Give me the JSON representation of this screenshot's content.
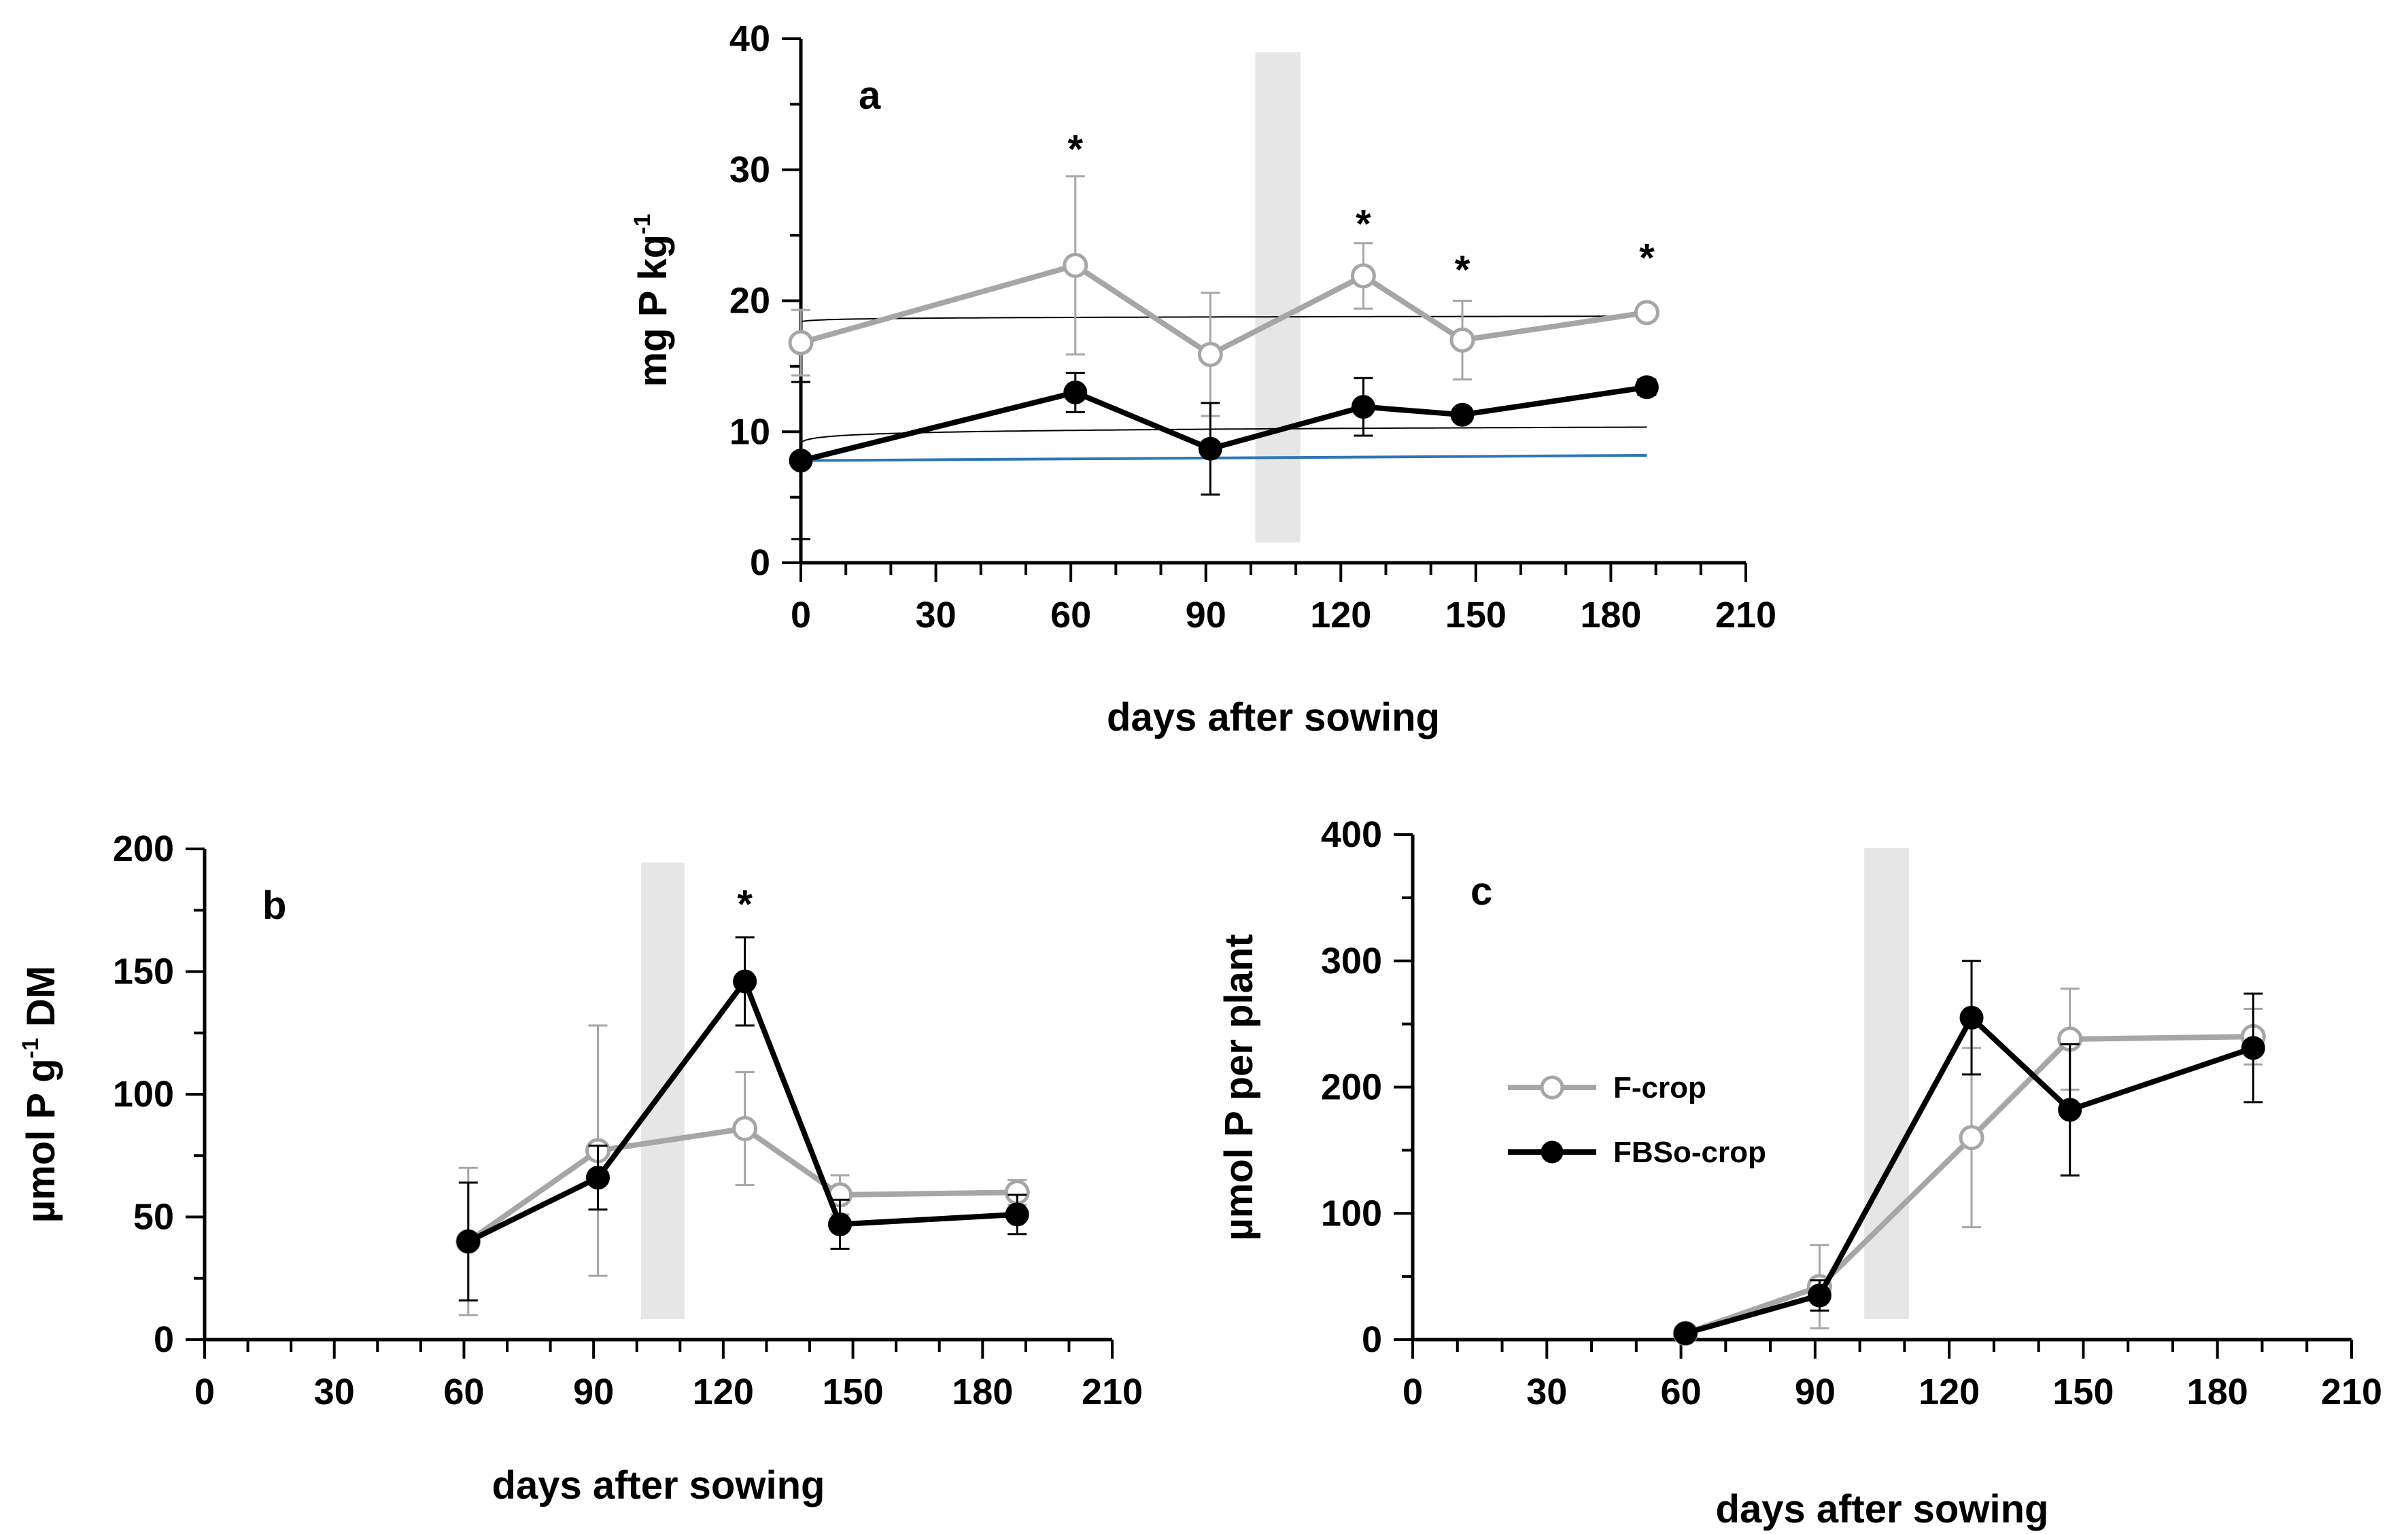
{
  "colors": {
    "f_crop": "#a6a6a6",
    "fbso_crop": "#000000",
    "band": "#e6e6e6",
    "reference_line": "#2e75b6",
    "trend": "#000000"
  },
  "legend": {
    "f_crop": "F-crop",
    "fbso_crop": "FBSo-crop"
  },
  "chart_data": [
    {
      "id": "a",
      "type": "line",
      "panel_label": "a",
      "xlabel": "days after sowing",
      "ylabel_main": "mg P  kg",
      "ylabel_sup": "-1",
      "ylabel_suffix": "",
      "xlim": [
        0,
        210
      ],
      "ylim": [
        0,
        40
      ],
      "xticks": [
        0,
        30,
        60,
        90,
        120,
        150,
        180,
        210
      ],
      "yticks": [
        0,
        10,
        20,
        30,
        40
      ],
      "xtick_labels": [
        "0",
        "30",
        "60",
        "90",
        "120",
        "150",
        "180",
        "210"
      ],
      "ytick_labels": [
        "0",
        "10",
        "20",
        "30",
        "40"
      ],
      "shaded_band": [
        101,
        111
      ],
      "series": [
        {
          "key": "f_crop",
          "x": [
            0,
            61,
            91,
            125,
            147,
            188
          ],
          "y": [
            16.8,
            22.7,
            15.9,
            21.9,
            17.0,
            19.1
          ],
          "err": [
            2.5,
            6.8,
            4.7,
            2.5,
            3.0,
            0.6
          ]
        },
        {
          "key": "fbso_crop",
          "x": [
            0,
            61,
            91,
            125,
            147,
            188
          ],
          "y": [
            7.8,
            13.0,
            8.7,
            11.9,
            11.3,
            13.4
          ],
          "err": [
            6.0,
            1.5,
            3.5,
            2.2,
            0.5,
            0.6
          ]
        }
      ],
      "trend_lines": [
        {
          "a": 18.4,
          "b": 0.08
        },
        {
          "a": 9.2,
          "b": 0.22
        }
      ],
      "reference_line": {
        "x": [
          0,
          188
        ],
        "y": [
          7.8,
          8.2
        ]
      },
      "significance": [
        {
          "x": 61,
          "y": 32.6,
          "label": "*"
        },
        {
          "x": 125,
          "y": 26.9,
          "label": "*"
        },
        {
          "x": 147,
          "y": 23.4,
          "label": "*"
        },
        {
          "x": 188,
          "y": 24.3,
          "label": "*"
        }
      ]
    },
    {
      "id": "b",
      "type": "line",
      "panel_label": "b",
      "xlabel": "days after sowing",
      "ylabel_main": "µmol P   g",
      "ylabel_sup": "-1",
      "ylabel_suffix": " DM",
      "xlim": [
        0,
        210
      ],
      "ylim": [
        0,
        200
      ],
      "xticks": [
        0,
        30,
        60,
        90,
        120,
        150,
        180,
        210
      ],
      "yticks": [
        0,
        50,
        100,
        150,
        200
      ],
      "xtick_labels": [
        "0",
        "30",
        "60",
        "90",
        "120",
        "150",
        "180",
        "210"
      ],
      "ytick_labels": [
        "0",
        "50",
        "100",
        "150",
        "200"
      ],
      "shaded_band": [
        101,
        111
      ],
      "series": [
        {
          "key": "f_crop",
          "x": [
            61,
            91,
            125,
            147,
            188
          ],
          "y": [
            40,
            77,
            86,
            59,
            60
          ],
          "err": [
            30,
            51,
            23,
            8,
            5
          ]
        },
        {
          "key": "fbso_crop",
          "x": [
            61,
            91,
            125,
            147,
            188
          ],
          "y": [
            40,
            66,
            146,
            47,
            51
          ],
          "err": [
            24,
            13,
            18,
            10,
            8
          ]
        }
      ],
      "significance": [
        {
          "x": 125,
          "y": 183,
          "label": "*"
        }
      ]
    },
    {
      "id": "c",
      "type": "line",
      "panel_label": "c",
      "xlabel": "days after sowing",
      "ylabel_main": "µmol P  per plant",
      "ylabel_sup": "",
      "ylabel_suffix": "",
      "xlim": [
        0,
        210
      ],
      "ylim": [
        0,
        400
      ],
      "xticks": [
        0,
        30,
        60,
        90,
        120,
        150,
        180,
        210
      ],
      "yticks": [
        0,
        100,
        200,
        300,
        400
      ],
      "xtick_labels": [
        "0",
        "30",
        "60",
        "90",
        "120",
        "150",
        "180",
        "210"
      ],
      "ytick_labels": [
        "0",
        "100",
        "200",
        "300",
        "400"
      ],
      "shaded_band": [
        101,
        111
      ],
      "legend_position": "center",
      "series": [
        {
          "key": "f_crop",
          "x": [
            61,
            91,
            125,
            147,
            188
          ],
          "y": [
            5,
            42,
            160,
            238,
            240
          ],
          "err": [
            2,
            33,
            71,
            40,
            22
          ]
        },
        {
          "key": "fbso_crop",
          "x": [
            61,
            91,
            125,
            147,
            188
          ],
          "y": [
            5,
            35,
            255,
            182,
            231
          ],
          "err": [
            2,
            12,
            45,
            52,
            43
          ]
        }
      ],
      "significance": []
    }
  ]
}
